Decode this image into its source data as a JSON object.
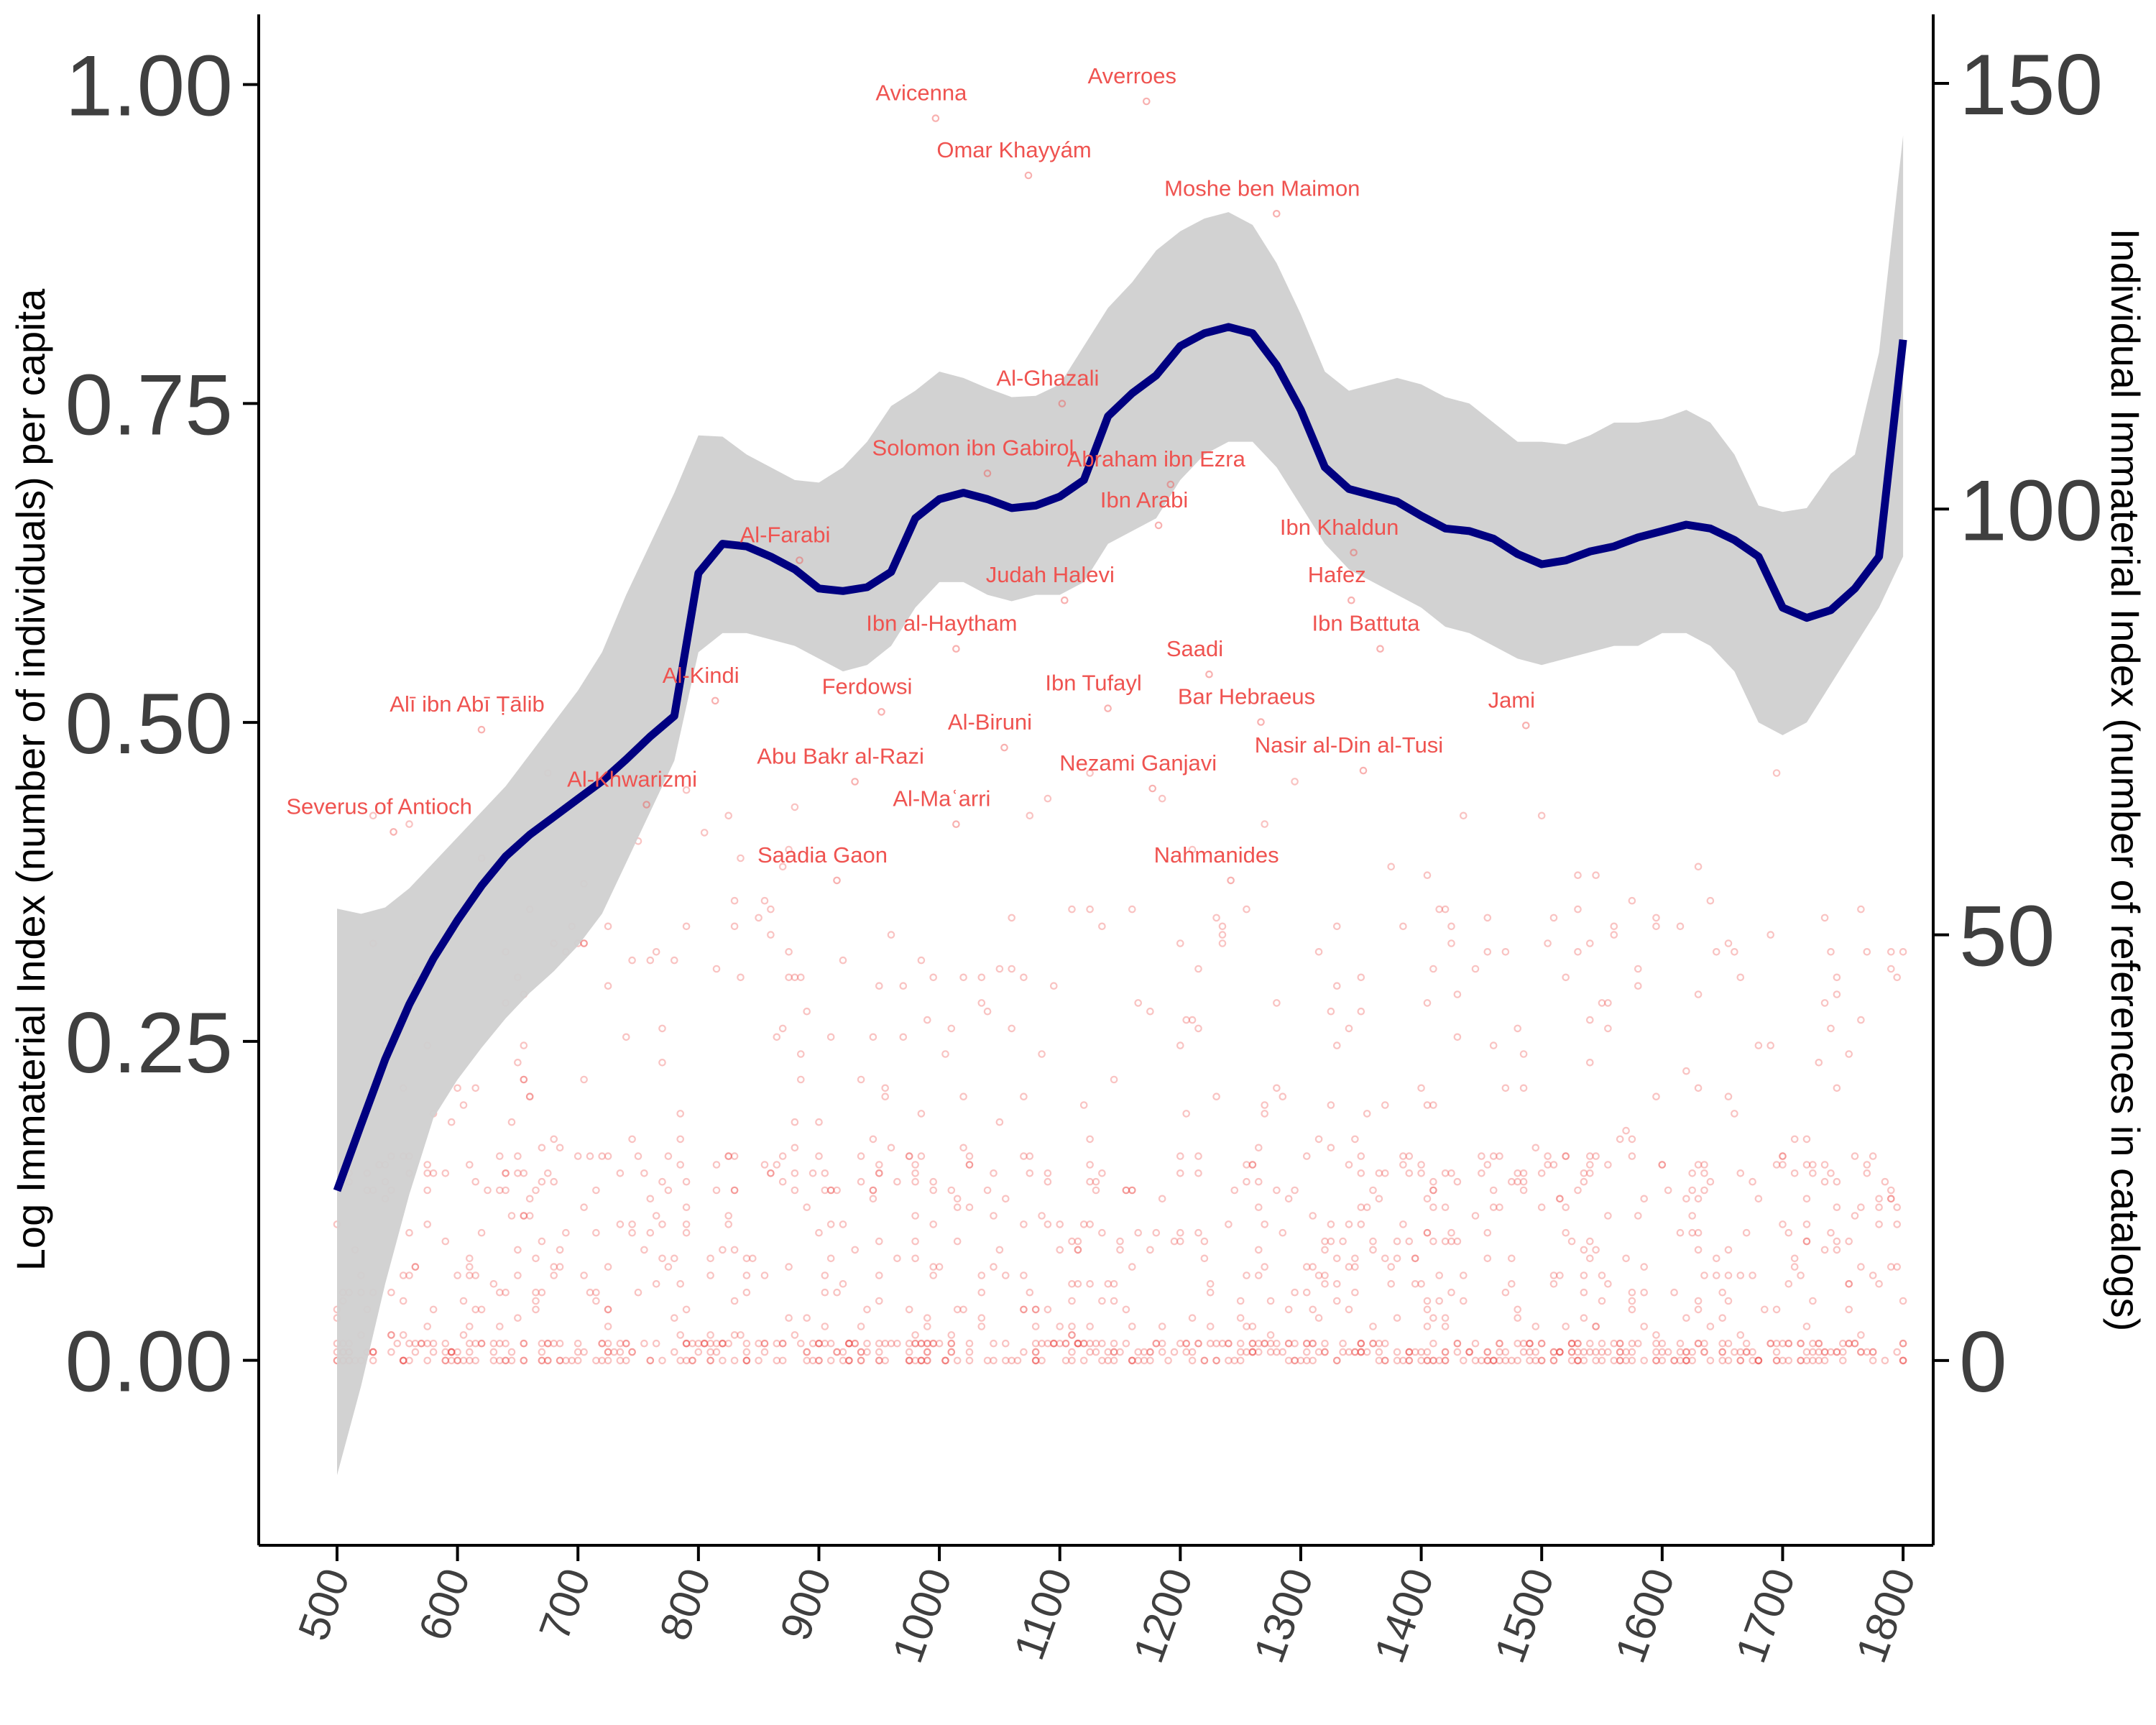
{
  "chart_data": {
    "type": "scatter",
    "title": "",
    "xlabel": "",
    "ylabel": "Log Immaterial Index (number of individuals) per capita",
    "y2label": "Individual Immaterial Index (number of references in catalogs)",
    "xlim": [
      435,
      1825
    ],
    "ylim": [
      -0.145,
      1.055
    ],
    "y2lim": [
      -21.7,
      158.1
    ],
    "x_ticks": [
      500,
      600,
      700,
      800,
      900,
      1000,
      1100,
      1200,
      1300,
      1400,
      1500,
      1600,
      1700,
      1800
    ],
    "y_ticks": [
      "0.00",
      "0.25",
      "0.50",
      "0.75",
      "1.00"
    ],
    "y2_ticks": [
      "0",
      "50",
      "100",
      "150"
    ],
    "grid": false,
    "colors": {
      "line": "#000080",
      "band": "#d0d0d0",
      "points": "#ef5350",
      "labels": "#ef5350"
    },
    "smooth": {
      "name": "",
      "x": [
        500,
        520,
        540,
        560,
        580,
        600,
        620,
        640,
        660,
        680,
        700,
        720,
        740,
        760,
        780,
        800,
        820,
        840,
        860,
        880,
        900,
        920,
        940,
        960,
        980,
        1000,
        1020,
        1040,
        1060,
        1080,
        1100,
        1120,
        1140,
        1160,
        1180,
        1200,
        1220,
        1240,
        1260,
        1280,
        1300,
        1320,
        1340,
        1360,
        1380,
        1400,
        1420,
        1440,
        1460,
        1480,
        1500,
        1520,
        1540,
        1560,
        1580,
        1600,
        1620,
        1640,
        1660,
        1680,
        1700,
        1720,
        1740,
        1760,
        1780,
        1800
      ],
      "y": [
        0.133,
        0.185,
        0.236,
        0.279,
        0.315,
        0.345,
        0.372,
        0.395,
        0.412,
        0.426,
        0.44,
        0.454,
        0.471,
        0.489,
        0.505,
        0.617,
        0.64,
        0.638,
        0.63,
        0.62,
        0.605,
        0.603,
        0.606,
        0.618,
        0.66,
        0.675,
        0.68,
        0.675,
        0.668,
        0.67,
        0.677,
        0.69,
        0.74,
        0.758,
        0.772,
        0.795,
        0.805,
        0.81,
        0.805,
        0.78,
        0.745,
        0.7,
        0.683,
        0.678,
        0.673,
        0.662,
        0.652,
        0.65,
        0.644,
        0.632,
        0.624,
        0.627,
        0.634,
        0.638,
        0.645,
        0.65,
        0.655,
        0.652,
        0.643,
        0.63,
        0.59,
        0.582,
        0.588,
        0.605,
        0.63,
        0.8
      ],
      "lower": [
        -0.09,
        -0.02,
        0.06,
        0.13,
        0.19,
        0.22,
        0.245,
        0.268,
        0.288,
        0.305,
        0.325,
        0.35,
        0.39,
        0.43,
        0.47,
        0.555,
        0.57,
        0.57,
        0.565,
        0.56,
        0.55,
        0.54,
        0.545,
        0.56,
        0.59,
        0.61,
        0.61,
        0.6,
        0.595,
        0.6,
        0.6,
        0.61,
        0.64,
        0.65,
        0.66,
        0.69,
        0.71,
        0.72,
        0.72,
        0.7,
        0.67,
        0.64,
        0.62,
        0.61,
        0.6,
        0.59,
        0.575,
        0.57,
        0.56,
        0.55,
        0.545,
        0.55,
        0.555,
        0.56,
        0.56,
        0.57,
        0.57,
        0.56,
        0.54,
        0.5,
        0.49,
        0.5,
        0.53,
        0.56,
        0.59,
        0.63
      ],
      "upper": [
        0.354,
        0.35,
        0.355,
        0.37,
        0.39,
        0.41,
        0.43,
        0.45,
        0.475,
        0.5,
        0.525,
        0.555,
        0.6,
        0.64,
        0.68,
        0.725,
        0.724,
        0.71,
        0.7,
        0.69,
        0.688,
        0.7,
        0.72,
        0.748,
        0.76,
        0.775,
        0.77,
        0.762,
        0.755,
        0.756,
        0.765,
        0.795,
        0.825,
        0.845,
        0.87,
        0.885,
        0.895,
        0.9,
        0.89,
        0.86,
        0.82,
        0.775,
        0.76,
        0.765,
        0.77,
        0.765,
        0.755,
        0.75,
        0.735,
        0.72,
        0.72,
        0.718,
        0.725,
        0.735,
        0.735,
        0.738,
        0.745,
        0.735,
        0.71,
        0.67,
        0.665,
        0.668,
        0.695,
        0.71,
        0.79,
        0.96
      ]
    },
    "labels": [
      {
        "text": "Averroes",
        "x": 1160,
        "y": 150
      },
      {
        "text": "Avicenna",
        "x": 985,
        "y": 148
      },
      {
        "text": "Omar Khayyám",
        "x": 1062,
        "y": 141.3
      },
      {
        "text": "Moshe ben Maimon",
        "x": 1268,
        "y": 136.8
      },
      {
        "text": "Al-Ghazali",
        "x": 1090,
        "y": 114.5
      },
      {
        "text": "Solomon ibn Gabirol",
        "x": 1028,
        "y": 106.3
      },
      {
        "text": "Abraham ibn Ezra",
        "x": 1180,
        "y": 105
      },
      {
        "text": "Ibn Arabi",
        "x": 1170,
        "y": 100.2
      },
      {
        "text": "Al-Farabi",
        "x": 872,
        "y": 96.1
      },
      {
        "text": "Ibn Khaldun",
        "x": 1332,
        "y": 97
      },
      {
        "text": "Hafez",
        "x": 1330,
        "y": 91.4
      },
      {
        "text": "Judah Halevi",
        "x": 1092,
        "y": 91.4
      },
      {
        "text": "Ibn al-Haytham",
        "x": 1002,
        "y": 85.7
      },
      {
        "text": "Ibn Battuta",
        "x": 1354,
        "y": 85.7
      },
      {
        "text": "Saadi",
        "x": 1212,
        "y": 82.7
      },
      {
        "text": "Al-Kindi",
        "x": 802,
        "y": 79.6
      },
      {
        "text": "Ferdowsi",
        "x": 940,
        "y": 78.3
      },
      {
        "text": "Ibn Tufayl",
        "x": 1128,
        "y": 78.7
      },
      {
        "text": "Bar Hebraeus",
        "x": 1255,
        "y": 77.1
      },
      {
        "text": "Jami",
        "x": 1475,
        "y": 76.7
      },
      {
        "text": "Alī ibn Abī Ṭālib",
        "x": 608,
        "y": 76.2
      },
      {
        "text": "Al-Biruni",
        "x": 1042,
        "y": 74.1
      },
      {
        "text": "Nasir al-Din al-Tusi",
        "x": 1340,
        "y": 71.4
      },
      {
        "text": "Abu Bakr al-Razi",
        "x": 918,
        "y": 70.1
      },
      {
        "text": "Nezami Ganjavi",
        "x": 1165,
        "y": 69.3
      },
      {
        "text": "Al-Khwarizmi",
        "x": 745,
        "y": 67.4
      },
      {
        "text": "Severus of Antioch",
        "x": 535,
        "y": 64.2
      },
      {
        "text": "Al-Maʿarri",
        "x": 1002,
        "y": 65.1
      },
      {
        "text": "Saadia Gaon",
        "x": 903,
        "y": 58.5
      },
      {
        "text": "Nahmanides",
        "x": 1230,
        "y": 58.5
      }
    ],
    "points_note_values": {
      "y2_min": 0,
      "y2_max": 150,
      "x_min": 500,
      "x_max": 1800
    }
  }
}
